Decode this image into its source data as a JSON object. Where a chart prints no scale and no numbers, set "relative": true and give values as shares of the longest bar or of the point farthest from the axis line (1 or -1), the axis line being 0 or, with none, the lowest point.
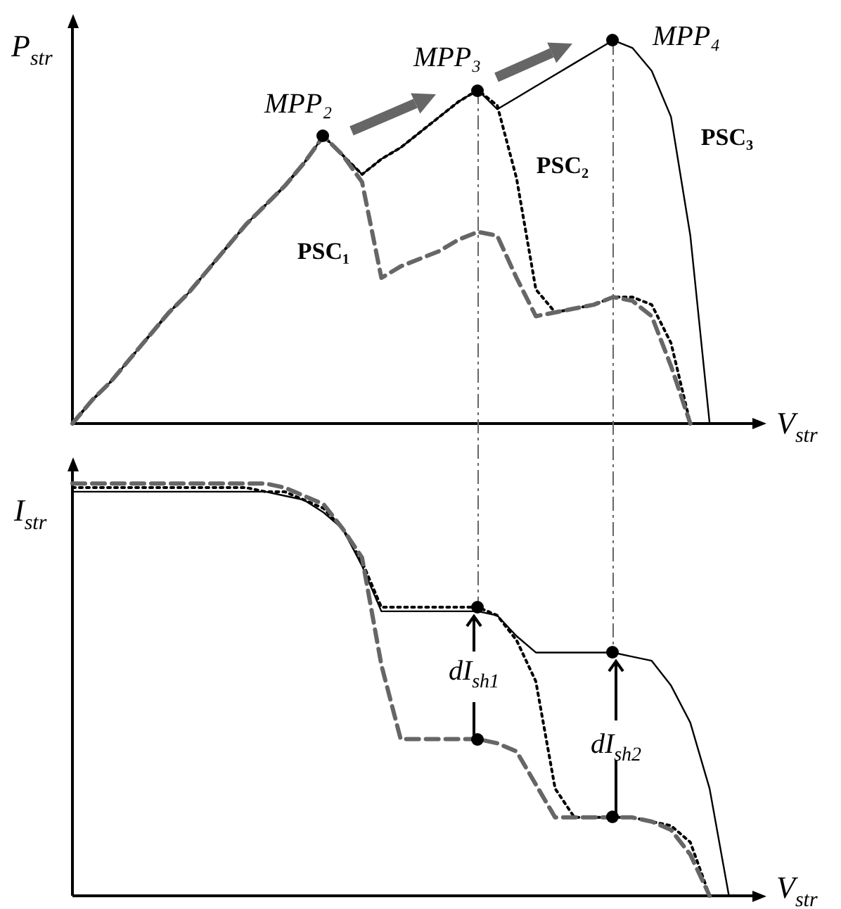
{
  "chart_data": [
    {
      "type": "line",
      "relative": true,
      "legend": false,
      "tick_labels": false,
      "ylabel": "P$_{str}$",
      "xlabel": "V$_{str}$",
      "categories": [
        null,
        null,
        null,
        null,
        null,
        null,
        null,
        null,
        null,
        null,
        null,
        null,
        null,
        null,
        null,
        null,
        null,
        null,
        null,
        null,
        null,
        null,
        null,
        null,
        null,
        null,
        null,
        null,
        null,
        null,
        null,
        null,
        null,
        null
      ],
      "series": [
        {
          "name": "PSC₁",
          "color": "#666666",
          "line_style": "dashed",
          "values": [
            0,
            0.06,
            0.11,
            0.17,
            0.23,
            0.29,
            0.34,
            0.4,
            0.46,
            0.52,
            0.57,
            0.62,
            0.68,
            0.75,
            0.7,
            0.63,
            0.38,
            0.41,
            0.43,
            0.45,
            0.48,
            0.5,
            0.49,
            0.38,
            0.28,
            0.29,
            0.3,
            0.31,
            0.33,
            0.32,
            0.28,
            0.15,
            0,
            null
          ]
        },
        {
          "name": "PSC₂",
          "color": "#000000",
          "line_style": "dotted",
          "values": [
            0,
            0.06,
            0.11,
            0.17,
            0.23,
            0.29,
            0.34,
            0.4,
            0.46,
            0.52,
            0.57,
            0.62,
            0.68,
            0.75,
            0.7,
            0.65,
            0.69,
            0.72,
            0.76,
            0.8,
            0.84,
            0.87,
            0.83,
            0.64,
            0.35,
            0.29,
            0.3,
            0.31,
            0.33,
            0.33,
            0.31,
            0.21,
            0,
            null
          ]
        },
        {
          "name": "PSC₃",
          "color": "#000000",
          "line_style": "solid",
          "values": [
            0,
            0.06,
            0.11,
            0.17,
            0.23,
            0.29,
            0.34,
            0.4,
            0.46,
            0.52,
            0.57,
            0.62,
            0.68,
            0.75,
            0.7,
            0.65,
            0.69,
            0.72,
            0.76,
            0.8,
            0.84,
            0.87,
            0.82,
            0.85,
            0.88,
            0.91,
            0.94,
            0.97,
            1,
            0.98,
            0.92,
            0.8,
            0.49,
            0
          ]
        }
      ],
      "annotations": [
        "MPP₂",
        "MPP₃",
        "MPP₄"
      ]
    },
    {
      "type": "line",
      "relative": true,
      "legend": false,
      "tick_labels": false,
      "ylabel": "I$_{str}$",
      "xlabel": "V$_{str}$",
      "categories": [
        null,
        null,
        null,
        null,
        null,
        null,
        null,
        null,
        null,
        null,
        null,
        null,
        null,
        null,
        null,
        null,
        null,
        null,
        null,
        null,
        null,
        null,
        null,
        null,
        null,
        null,
        null,
        null,
        null,
        null,
        null,
        null,
        null,
        null,
        null
      ],
      "series": [
        {
          "color": "#666666",
          "line_style": "dashed",
          "values": [
            1,
            1,
            1,
            1,
            1,
            1,
            1,
            1,
            1,
            1,
            1,
            0.99,
            0.97,
            0.95,
            0.89,
            0.82,
            0.56,
            0.38,
            0.38,
            0.38,
            0.38,
            0.38,
            0.37,
            0.35,
            0.27,
            0.19,
            0.19,
            0.19,
            0.19,
            0.19,
            0.18,
            0.16,
            0.1,
            0,
            null
          ]
        },
        {
          "color": "#000000",
          "line_style": "dotted",
          "values": [
            0.99,
            0.99,
            0.99,
            0.99,
            0.99,
            0.99,
            0.99,
            0.99,
            0.99,
            0.99,
            0.98,
            0.98,
            0.96,
            0.94,
            0.89,
            0.81,
            0.7,
            0.7,
            0.7,
            0.7,
            0.7,
            0.7,
            0.68,
            0.62,
            0.52,
            0.26,
            0.19,
            0.19,
            0.19,
            0.19,
            0.18,
            0.17,
            0.13,
            0,
            null
          ]
        },
        {
          "color": "#000000",
          "line_style": "solid",
          "values": [
            0.98,
            0.98,
            0.98,
            0.98,
            0.98,
            0.98,
            0.98,
            0.98,
            0.98,
            0.98,
            0.98,
            0.97,
            0.96,
            0.93,
            0.89,
            0.8,
            0.69,
            0.69,
            0.69,
            0.69,
            0.69,
            0.69,
            0.68,
            0.63,
            0.59,
            0.59,
            0.59,
            0.59,
            0.59,
            0.58,
            0.57,
            0.51,
            0.42,
            0.26,
            0
          ]
        }
      ],
      "annotations": [
        "dI$_{sh1}$",
        "dI$_{sh2}$"
      ]
    }
  ]
}
